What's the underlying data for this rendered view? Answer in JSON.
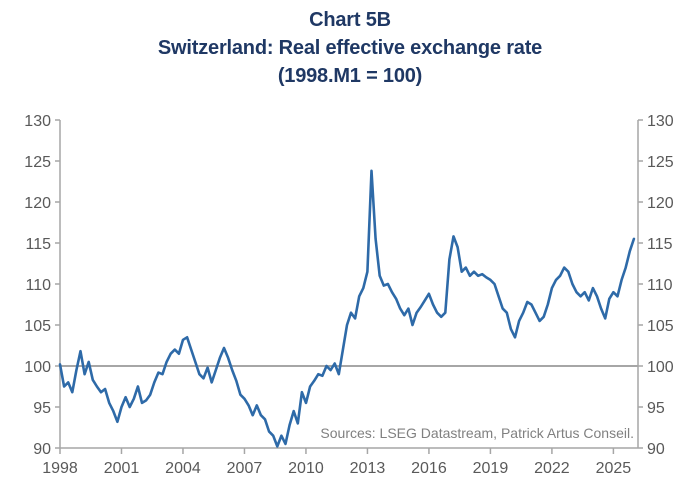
{
  "colors": {
    "title": "#1f3864",
    "line": "#2e6aa8",
    "axis": "#a6a6a6",
    "reference": "#a6a6a6",
    "text": "#595959",
    "source": "#808080"
  },
  "chart_data": {
    "type": "line",
    "title": "Chart 5B",
    "subtitle": "Switzerland: Real effective exchange rate",
    "subtitle2": "(1998.M1 = 100)",
    "source": "Sources: LSEG Datastream, Patrick Artus Conseil.",
    "xlabel": "",
    "ylabel": "",
    "xlim": [
      1998.0,
      2026.2
    ],
    "ylim": [
      90,
      130
    ],
    "x_ticks": [
      "1998",
      "2001",
      "2004",
      "2007",
      "2010",
      "2013",
      "2016",
      "2019",
      "2022",
      "2025"
    ],
    "x_tick_values": [
      1998,
      2001,
      2004,
      2007,
      2010,
      2013,
      2016,
      2019,
      2022,
      2025
    ],
    "y_ticks_left": [
      "130",
      "125",
      "120",
      "115",
      "110",
      "105",
      "100",
      "95",
      "90"
    ],
    "y_ticks_right": [
      "130",
      "125",
      "120",
      "115",
      "110",
      "105",
      "100",
      "95",
      "90"
    ],
    "y_tick_values": [
      130,
      125,
      120,
      115,
      110,
      105,
      100,
      95,
      90
    ],
    "reference_line": 100,
    "grid": false,
    "legend": "none",
    "series": [
      {
        "name": "Switzerland: Real effective exchange rate",
        "points": [
          [
            1998.0,
            100.2
          ],
          [
            1998.2,
            97.5
          ],
          [
            1998.4,
            98.0
          ],
          [
            1998.6,
            96.8
          ],
          [
            1998.8,
            99.5
          ],
          [
            1999.0,
            101.8
          ],
          [
            1999.2,
            99.0
          ],
          [
            1999.4,
            100.5
          ],
          [
            1999.6,
            98.3
          ],
          [
            1999.8,
            97.5
          ],
          [
            2000.0,
            96.8
          ],
          [
            2000.2,
            97.2
          ],
          [
            2000.4,
            95.5
          ],
          [
            2000.6,
            94.5
          ],
          [
            2000.8,
            93.2
          ],
          [
            2001.0,
            95.0
          ],
          [
            2001.2,
            96.2
          ],
          [
            2001.4,
            95.0
          ],
          [
            2001.6,
            96.0
          ],
          [
            2001.8,
            97.5
          ],
          [
            2002.0,
            95.5
          ],
          [
            2002.2,
            95.8
          ],
          [
            2002.4,
            96.5
          ],
          [
            2002.6,
            98.0
          ],
          [
            2002.8,
            99.2
          ],
          [
            2003.0,
            99.0
          ],
          [
            2003.2,
            100.5
          ],
          [
            2003.4,
            101.5
          ],
          [
            2003.6,
            102.0
          ],
          [
            2003.8,
            101.5
          ],
          [
            2004.0,
            103.2
          ],
          [
            2004.2,
            103.5
          ],
          [
            2004.4,
            102.0
          ],
          [
            2004.6,
            100.5
          ],
          [
            2004.8,
            99.0
          ],
          [
            2005.0,
            98.5
          ],
          [
            2005.2,
            99.8
          ],
          [
            2005.4,
            98.0
          ],
          [
            2005.6,
            99.5
          ],
          [
            2005.8,
            101.0
          ],
          [
            2006.0,
            102.2
          ],
          [
            2006.2,
            101.0
          ],
          [
            2006.4,
            99.5
          ],
          [
            2006.6,
            98.2
          ],
          [
            2006.8,
            96.5
          ],
          [
            2007.0,
            96.0
          ],
          [
            2007.2,
            95.2
          ],
          [
            2007.4,
            94.0
          ],
          [
            2007.6,
            95.2
          ],
          [
            2007.8,
            94.0
          ],
          [
            2008.0,
            93.5
          ],
          [
            2008.2,
            92.0
          ],
          [
            2008.4,
            91.5
          ],
          [
            2008.6,
            90.2
          ],
          [
            2008.8,
            91.5
          ],
          [
            2009.0,
            90.5
          ],
          [
            2009.2,
            92.8
          ],
          [
            2009.4,
            94.5
          ],
          [
            2009.6,
            93.0
          ],
          [
            2009.8,
            96.8
          ],
          [
            2010.0,
            95.5
          ],
          [
            2010.2,
            97.5
          ],
          [
            2010.4,
            98.2
          ],
          [
            2010.6,
            99.0
          ],
          [
            2010.8,
            98.8
          ],
          [
            2011.0,
            100.0
          ],
          [
            2011.2,
            99.5
          ],
          [
            2011.4,
            100.3
          ],
          [
            2011.6,
            99.0
          ],
          [
            2011.8,
            102.0
          ],
          [
            2012.0,
            105.0
          ],
          [
            2012.2,
            106.5
          ],
          [
            2012.4,
            105.8
          ],
          [
            2012.6,
            108.5
          ],
          [
            2012.8,
            109.5
          ],
          [
            2013.0,
            111.5
          ],
          [
            2013.2,
            123.8
          ],
          [
            2013.4,
            115.5
          ],
          [
            2013.6,
            111.0
          ],
          [
            2013.8,
            109.8
          ],
          [
            2014.0,
            110.0
          ],
          [
            2014.2,
            109.0
          ],
          [
            2014.4,
            108.2
          ],
          [
            2014.6,
            107.0
          ],
          [
            2014.8,
            106.2
          ],
          [
            2015.0,
            107.0
          ],
          [
            2015.2,
            105.0
          ],
          [
            2015.4,
            106.5
          ],
          [
            2015.6,
            107.2
          ],
          [
            2015.8,
            108.0
          ],
          [
            2016.0,
            108.8
          ],
          [
            2016.2,
            107.5
          ],
          [
            2016.4,
            106.5
          ],
          [
            2016.6,
            106.0
          ],
          [
            2016.8,
            106.5
          ],
          [
            2017.0,
            113.0
          ],
          [
            2017.2,
            115.8
          ],
          [
            2017.4,
            114.5
          ],
          [
            2017.6,
            111.5
          ],
          [
            2017.8,
            112.0
          ],
          [
            2018.0,
            111.0
          ],
          [
            2018.2,
            111.5
          ],
          [
            2018.4,
            111.0
          ],
          [
            2018.6,
            111.2
          ],
          [
            2018.8,
            110.8
          ],
          [
            2019.0,
            110.5
          ],
          [
            2019.2,
            110.0
          ],
          [
            2019.4,
            108.5
          ],
          [
            2019.6,
            107.0
          ],
          [
            2019.8,
            106.5
          ],
          [
            2020.0,
            104.5
          ],
          [
            2020.2,
            103.5
          ],
          [
            2020.4,
            105.5
          ],
          [
            2020.6,
            106.5
          ],
          [
            2020.8,
            107.8
          ],
          [
            2021.0,
            107.5
          ],
          [
            2021.2,
            106.5
          ],
          [
            2021.4,
            105.5
          ],
          [
            2021.6,
            106.0
          ],
          [
            2021.8,
            107.5
          ],
          [
            2022.0,
            109.5
          ],
          [
            2022.2,
            110.5
          ],
          [
            2022.4,
            111.0
          ],
          [
            2022.6,
            112.0
          ],
          [
            2022.8,
            111.5
          ],
          [
            2023.0,
            110.0
          ],
          [
            2023.2,
            109.0
          ],
          [
            2023.4,
            108.5
          ],
          [
            2023.6,
            109.0
          ],
          [
            2023.8,
            108.0
          ],
          [
            2024.0,
            109.5
          ],
          [
            2024.2,
            108.5
          ],
          [
            2024.4,
            107.0
          ],
          [
            2024.6,
            105.8
          ],
          [
            2024.8,
            108.2
          ],
          [
            2025.0,
            109.0
          ],
          [
            2025.2,
            108.5
          ],
          [
            2025.4,
            110.5
          ],
          [
            2025.6,
            112.0
          ],
          [
            2025.8,
            114.0
          ],
          [
            2026.0,
            115.5
          ]
        ]
      }
    ]
  }
}
